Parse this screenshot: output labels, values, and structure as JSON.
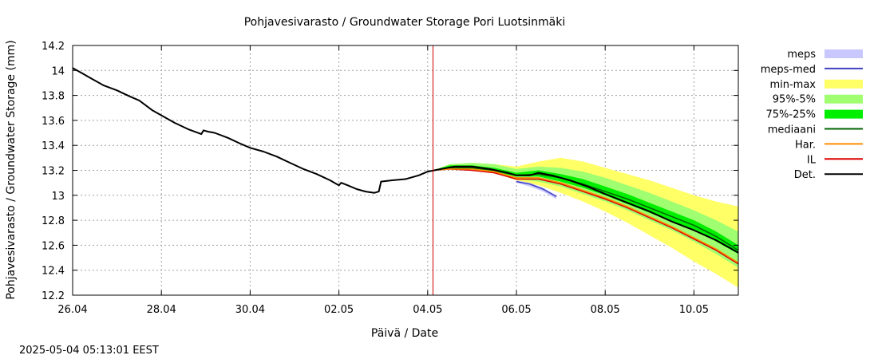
{
  "chart_data": {
    "type": "area",
    "title": "Pohjavesivarasto / Groundwater Storage   Pori Luotsinmäki",
    "xlabel": "Päivä / Date",
    "ylabel": "Pohjavesivarasto / Groundwater Storage (mm)",
    "timestamp": "2025-05-04  05:13:01 EEST",
    "x_unit": "days since 26.04",
    "xlim": [
      0,
      15
    ],
    "ylim": [
      12.2,
      14.2
    ],
    "grid": true,
    "legend_position": "right",
    "x_ticks": [
      {
        "x": 0,
        "label": "26.04"
      },
      {
        "x": 2,
        "label": "28.04"
      },
      {
        "x": 4,
        "label": "30.04"
      },
      {
        "x": 6,
        "label": "02.05"
      },
      {
        "x": 8,
        "label": "04.05"
      },
      {
        "x": 10,
        "label": "06.05"
      },
      {
        "x": 12,
        "label": "08.05"
      },
      {
        "x": 14,
        "label": "10.05"
      }
    ],
    "y_ticks": [
      {
        "y": 12.2,
        "label": "12.2"
      },
      {
        "y": 12.4,
        "label": "12.4"
      },
      {
        "y": 12.6,
        "label": "12.6"
      },
      {
        "y": 12.8,
        "label": "12.8"
      },
      {
        "y": 13,
        "label": "13"
      },
      {
        "y": 13.2,
        "label": "13.2"
      },
      {
        "y": 13.4,
        "label": "13.4"
      },
      {
        "y": 13.6,
        "label": "13.6"
      },
      {
        "y": 13.8,
        "label": "13.8"
      },
      {
        "y": 14,
        "label": "14"
      },
      {
        "y": 14.2,
        "label": "14.2"
      }
    ],
    "forecast_start_x": 8.12,
    "bands": [
      {
        "name": "min-max",
        "color": "#ffff66",
        "x": [
          8.12,
          8.5,
          9.0,
          9.5,
          10.0,
          10.5,
          11.0,
          11.5,
          12.0,
          12.5,
          13.0,
          13.5,
          14.0,
          14.5,
          15.0
        ],
        "lower": [
          13.2,
          13.21,
          13.2,
          13.18,
          13.12,
          13.08,
          13.02,
          12.95,
          12.87,
          12.78,
          12.68,
          12.58,
          12.47,
          12.37,
          12.26
        ],
        "upper": [
          13.2,
          13.25,
          13.26,
          13.25,
          13.23,
          13.27,
          13.3,
          13.27,
          13.22,
          13.17,
          13.12,
          13.06,
          13.0,
          12.95,
          12.91
        ]
      },
      {
        "name": "95%-5%",
        "color": "#a0ff70",
        "x": [
          8.12,
          8.5,
          9.0,
          9.5,
          10.0,
          10.5,
          11.0,
          11.5,
          12.0,
          12.5,
          13.0,
          13.5,
          14.0,
          14.5,
          15.0
        ],
        "lower": [
          13.2,
          13.21,
          13.2,
          13.18,
          13.13,
          13.11,
          13.07,
          13.01,
          12.95,
          12.88,
          12.8,
          12.72,
          12.63,
          12.53,
          12.42
        ],
        "upper": [
          13.2,
          13.25,
          13.26,
          13.25,
          13.21,
          13.23,
          13.22,
          13.19,
          13.14,
          13.08,
          13.02,
          12.95,
          12.88,
          12.8,
          12.71
        ]
      },
      {
        "name": "75%-25%",
        "color": "#00ee00",
        "x": [
          8.12,
          8.5,
          9.0,
          9.5,
          10.0,
          10.5,
          11.0,
          11.5,
          12.0,
          12.5,
          13.0,
          13.5,
          14.0,
          14.5,
          15.0
        ],
        "lower": [
          13.2,
          13.21,
          13.21,
          13.19,
          13.15,
          13.15,
          13.11,
          13.06,
          13.0,
          12.93,
          12.86,
          12.79,
          12.72,
          12.63,
          12.53
        ],
        "upper": [
          13.2,
          13.24,
          13.24,
          13.22,
          13.18,
          13.2,
          13.17,
          13.13,
          13.07,
          13.01,
          12.94,
          12.87,
          12.8,
          12.71,
          12.6
        ]
      },
      {
        "name": "meps",
        "color": "#c8c8ff",
        "x": [
          10.0,
          10.3,
          10.6,
          10.9
        ],
        "lower": [
          13.1,
          13.07,
          13.03,
          12.97
        ],
        "upper": [
          13.12,
          13.1,
          13.06,
          13.0
        ]
      }
    ],
    "series": [
      {
        "name": "Det.",
        "color": "#000000",
        "width": 2,
        "x": [
          0,
          0.2,
          0.4,
          0.7,
          1.0,
          1.3,
          1.5,
          1.8,
          2.0,
          2.3,
          2.6,
          2.9,
          2.95,
          3.05,
          3.2,
          3.5,
          3.8,
          4.0,
          4.3,
          4.6,
          4.9,
          5.2,
          5.5,
          5.8,
          5.95,
          6.0,
          6.05,
          6.2,
          6.4,
          6.6,
          6.8,
          6.9,
          6.95,
          7.2,
          7.5,
          7.8,
          8.0,
          8.3,
          8.6,
          9.0,
          9.4,
          9.8,
          10.0,
          10.3,
          10.5,
          10.8,
          11.2,
          11.6,
          12.0,
          12.5,
          13.0,
          13.5,
          14.0,
          14.5,
          15.0
        ],
        "y": [
          14.02,
          13.98,
          13.94,
          13.88,
          13.84,
          13.79,
          13.76,
          13.68,
          13.64,
          13.58,
          13.53,
          13.49,
          13.52,
          13.51,
          13.5,
          13.46,
          13.41,
          13.38,
          13.35,
          13.31,
          13.26,
          13.21,
          13.17,
          13.12,
          13.09,
          13.08,
          13.1,
          13.08,
          13.05,
          13.03,
          13.02,
          13.03,
          13.11,
          13.12,
          13.13,
          13.16,
          13.19,
          13.21,
          13.23,
          13.23,
          13.21,
          13.18,
          13.16,
          13.16,
          13.18,
          13.16,
          13.12,
          13.07,
          13.01,
          12.94,
          12.87,
          12.79,
          12.72,
          12.64,
          12.54
        ]
      },
      {
        "name": "mediaani",
        "color": "#006400",
        "width": 1.5,
        "x": [
          8.12,
          8.5,
          9.0,
          9.5,
          10.0,
          10.5,
          11.0,
          11.5,
          12.0,
          12.5,
          13.0,
          13.5,
          14.0,
          14.5,
          15.0
        ],
        "y": [
          13.2,
          13.22,
          13.22,
          13.2,
          13.16,
          13.17,
          13.14,
          13.09,
          13.03,
          12.97,
          12.9,
          12.83,
          12.76,
          12.67,
          12.56
        ]
      },
      {
        "name": "IL",
        "color": "#dd0000",
        "width": 1.5,
        "x": [
          8.12,
          8.5,
          9.0,
          9.5,
          10.0,
          10.5,
          11.0,
          11.5,
          12.0,
          12.5,
          13.0,
          13.5,
          14.0,
          14.5,
          15.0
        ],
        "y": [
          13.2,
          13.21,
          13.2,
          13.18,
          13.13,
          13.13,
          13.09,
          13.03,
          12.97,
          12.9,
          12.82,
          12.74,
          12.65,
          12.56,
          12.45
        ]
      },
      {
        "name": "Har.",
        "color": "#ff8c00",
        "width": 1.5,
        "x": [
          8.12,
          8.5,
          9.0,
          9.5,
          10.0,
          10.5,
          11.0,
          11.5,
          12.0,
          12.5,
          13.0,
          13.5,
          14.0,
          14.5,
          15.0
        ],
        "y": [
          13.2,
          13.21,
          13.21,
          13.19,
          13.14,
          13.14,
          13.1,
          13.04,
          12.98,
          12.91,
          12.83,
          12.75,
          12.66,
          12.57,
          12.46
        ]
      },
      {
        "name": "meps-med",
        "color": "#4040c0",
        "width": 1.5,
        "x": [
          10.0,
          10.3,
          10.6,
          10.9
        ],
        "y": [
          13.11,
          13.09,
          13.05,
          12.99
        ]
      }
    ],
    "forecast_line_color": "#cc0000",
    "legend": [
      {
        "label": "meps",
        "kind": "band",
        "color": "#c8c8ff"
      },
      {
        "label": "meps-med",
        "kind": "line",
        "color": "#4040c0"
      },
      {
        "label": "min-max",
        "kind": "band",
        "color": "#ffff66"
      },
      {
        "label": "95%-5%",
        "kind": "band",
        "color": "#a0ff70"
      },
      {
        "label": "75%-25%",
        "kind": "band",
        "color": "#00ee00"
      },
      {
        "label": "mediaani",
        "kind": "line",
        "color": "#006400"
      },
      {
        "label": "Har.",
        "kind": "line",
        "color": "#ff8c00"
      },
      {
        "label": "IL",
        "kind": "line",
        "color": "#dd0000"
      },
      {
        "label": "Det.",
        "kind": "line",
        "color": "#000000"
      }
    ]
  }
}
